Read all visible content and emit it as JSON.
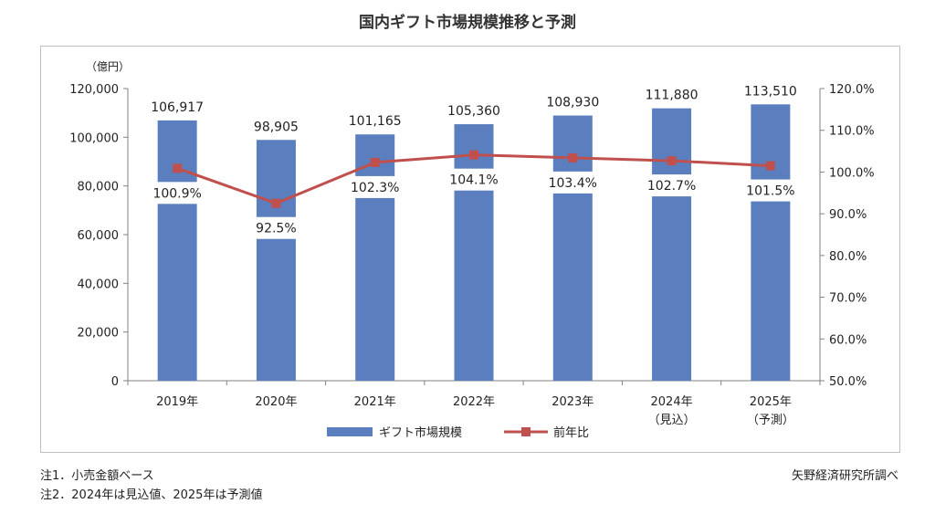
{
  "title": "国内ギフト市場規模推移と予測",
  "notes": [
    "注1．小売金額ベース",
    "注2．2024年は見込値、2025年は予測値"
  ],
  "source": "矢野経済研究所調べ",
  "colors": {
    "bar": "#5b7fbe",
    "line": "#c0504d",
    "axis": "#808080",
    "text": "#222222"
  },
  "chart_data": {
    "type": "bar+line",
    "categories": [
      {
        "line1": "2019年",
        "line2": ""
      },
      {
        "line1": "2020年",
        "line2": ""
      },
      {
        "line1": "2021年",
        "line2": ""
      },
      {
        "line1": "2022年",
        "line2": ""
      },
      {
        "line1": "2023年",
        "line2": ""
      },
      {
        "line1": "2024年",
        "line2": "（見込）"
      },
      {
        "line1": "2025年",
        "line2": "（予測）"
      }
    ],
    "series": [
      {
        "name": "ギフト市場規模",
        "type": "bar",
        "axis": "left",
        "values": [
          106917,
          98905,
          101165,
          105360,
          108930,
          111880,
          113510
        ],
        "labels": [
          "106,917",
          "98,905",
          "101,165",
          "105,360",
          "108,930",
          "111,880",
          "113,510"
        ]
      },
      {
        "name": "前年比",
        "type": "line",
        "axis": "right",
        "values": [
          100.9,
          92.5,
          102.3,
          104.1,
          103.4,
          102.7,
          101.5
        ],
        "labels": [
          "100.9%",
          "92.5%",
          "102.3%",
          "104.1%",
          "103.4%",
          "102.7%",
          "101.5%"
        ]
      }
    ],
    "left_axis": {
      "unit_label": "（億円）",
      "min": 0,
      "max": 120000,
      "step": 20000,
      "tick_labels": [
        "0",
        "20,000",
        "40,000",
        "60,000",
        "80,000",
        "100,000",
        "120,000"
      ]
    },
    "right_axis": {
      "min": 50,
      "max": 120,
      "step": 10,
      "tick_labels": [
        "50.0%",
        "60.0%",
        "70.0%",
        "80.0%",
        "90.0%",
        "100.0%",
        "110.0%",
        "120.0%"
      ]
    },
    "grid": false,
    "legend_position": "bottom"
  }
}
